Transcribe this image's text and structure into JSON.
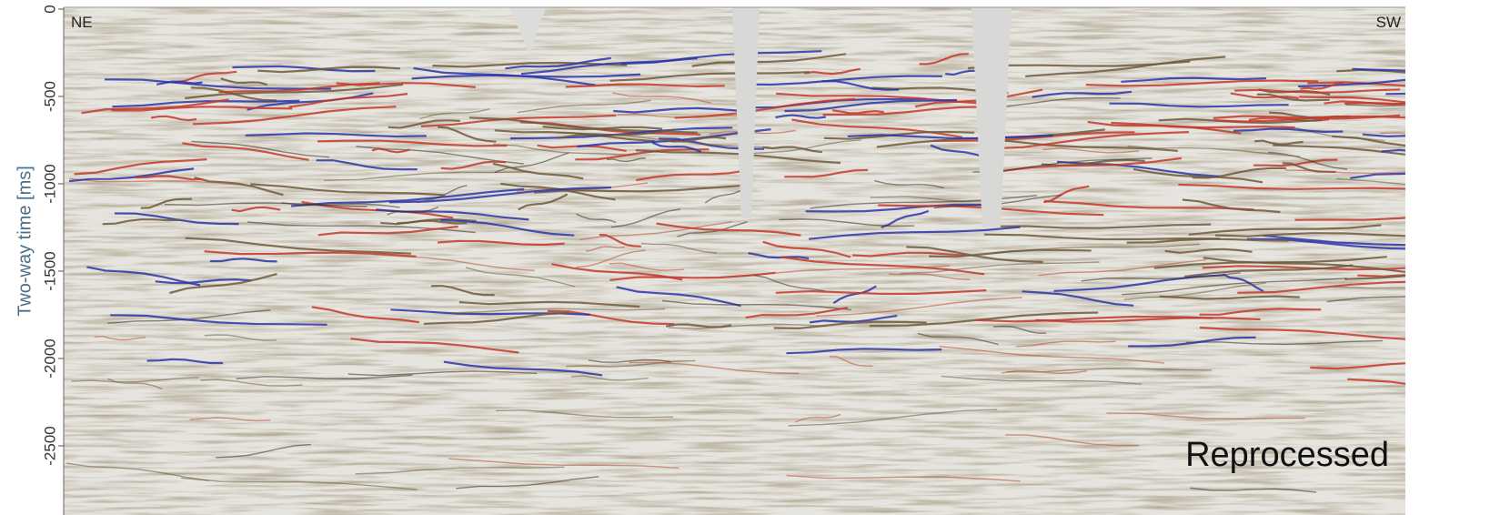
{
  "figure": {
    "y_axis": {
      "label": "Two-way time [ms]",
      "ylim": [
        0,
        -2750
      ],
      "yticks": [
        0,
        -500,
        -1000,
        -1500,
        -2000,
        -2500
      ]
    },
    "labels": {
      "left": "NE",
      "right": "SW",
      "caption": "Reprocessed"
    }
  }
}
